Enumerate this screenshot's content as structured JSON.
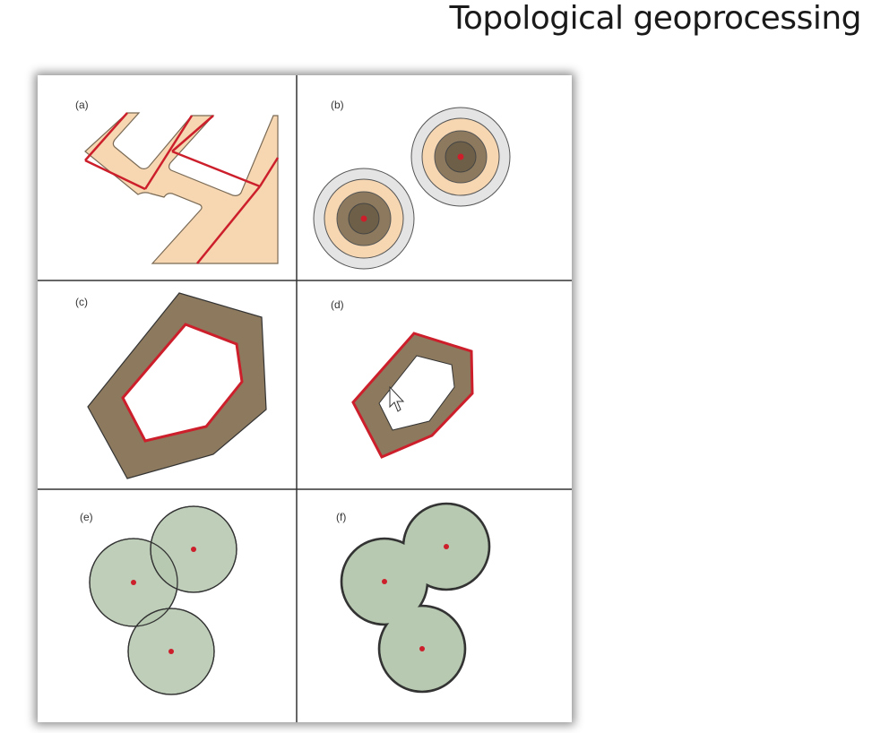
{
  "title": "Topological geoprocessing",
  "panels": [
    {
      "id": "a",
      "label": "(a)"
    },
    {
      "id": "b",
      "label": "(b)"
    },
    {
      "id": "c",
      "label": "(c)"
    },
    {
      "id": "d",
      "label": "(d)"
    },
    {
      "id": "e",
      "label": "(e)"
    },
    {
      "id": "f",
      "label": "(f)"
    }
  ],
  "colors": {
    "red_line": "#cc1f2b",
    "tan_fill": "#f6d7b2",
    "dark_olive": "#8d7a5e",
    "mid_tan": "#c9aa83",
    "light_grey_ring": "#e6e6e6",
    "green_fill": "#b7c9b1",
    "outline": "#333333"
  }
}
